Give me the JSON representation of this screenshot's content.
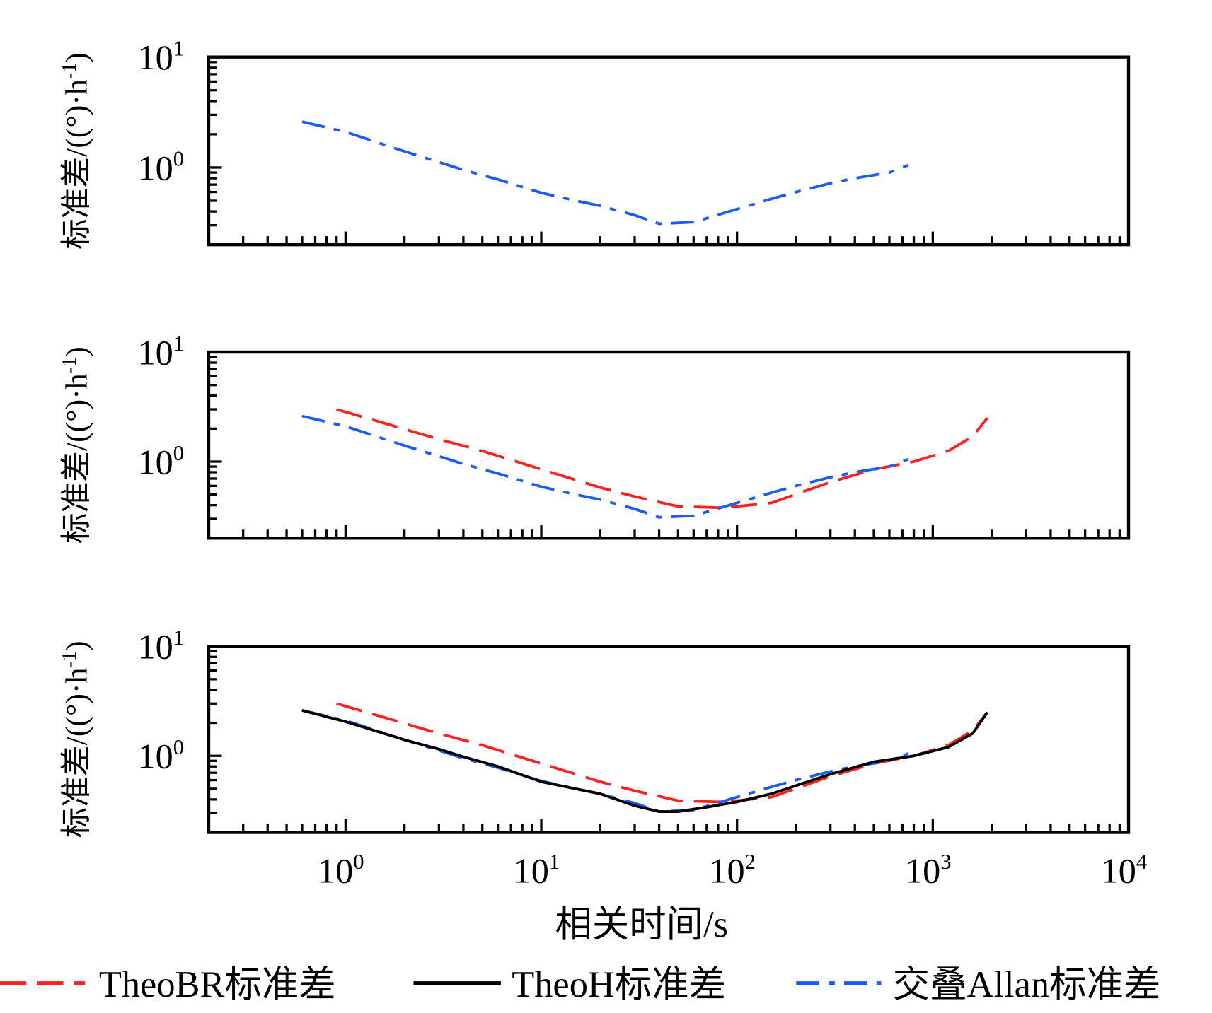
{
  "chart_data": {
    "type": "line",
    "xlabel": "相关时间/s",
    "ylabel": "标准差/((°)·h",
    "ylabel_sup": "-1",
    "ylabel_close": ")",
    "xscale": "log",
    "yscale": "log",
    "xlim": [
      0.2,
      10000
    ],
    "ylim": [
      0.2,
      10
    ],
    "x_ticks": [
      {
        "base": "10",
        "exp": "0",
        "value": 1
      },
      {
        "base": "10",
        "exp": "1",
        "value": 10
      },
      {
        "base": "10",
        "exp": "2",
        "value": 100
      },
      {
        "base": "10",
        "exp": "3",
        "value": 1000
      },
      {
        "base": "10",
        "exp": "4",
        "value": 10000
      }
    ],
    "y_ticks": [
      {
        "base": "10",
        "exp": "1",
        "value": 10
      },
      {
        "base": "10",
        "exp": "0",
        "value": 1
      }
    ],
    "legend_position": "bottom",
    "series_defs": {
      "theobr": {
        "name": "TheoBR标准差",
        "color": "#ff2020",
        "dash": "34,14",
        "x": [
          0.9,
          1.5,
          3,
          5,
          10,
          20,
          30,
          50,
          80,
          100,
          150,
          300,
          500,
          800,
          1200,
          1600,
          1900
        ],
        "y": [
          3.0,
          2.3,
          1.6,
          1.25,
          0.85,
          0.58,
          0.48,
          0.39,
          0.38,
          0.39,
          0.42,
          0.65,
          0.85,
          1.0,
          1.25,
          1.7,
          2.5
        ]
      },
      "theoh": {
        "name": "TheoH标准差",
        "color": "#000000",
        "dash": "",
        "x": [
          0.6,
          1,
          2,
          3,
          4,
          6,
          10,
          15,
          20,
          30,
          40,
          50,
          70,
          100,
          150,
          300,
          500,
          800,
          1200,
          1600,
          1900
        ],
        "y": [
          2.6,
          2.05,
          1.4,
          1.15,
          0.98,
          0.8,
          0.58,
          0.5,
          0.45,
          0.35,
          0.31,
          0.31,
          0.34,
          0.38,
          0.45,
          0.68,
          0.88,
          1.0,
          1.2,
          1.6,
          2.5
        ]
      },
      "allan": {
        "name": "交叠Allan标准差",
        "color": "#1a5cff",
        "dash": "30,12,8,12",
        "x": [
          0.6,
          1,
          2,
          3,
          4,
          6,
          10,
          15,
          20,
          30,
          40,
          60,
          100,
          150,
          200,
          300,
          400,
          600,
          750
        ],
        "y": [
          2.6,
          2.1,
          1.4,
          1.12,
          0.95,
          0.78,
          0.59,
          0.5,
          0.45,
          0.37,
          0.31,
          0.32,
          0.42,
          0.52,
          0.6,
          0.72,
          0.8,
          0.9,
          1.05
        ]
      }
    },
    "panels": [
      {
        "series": [
          "allan"
        ]
      },
      {
        "series": [
          "theobr",
          "allan"
        ]
      },
      {
        "series": [
          "theobr",
          "allan",
          "theoh"
        ]
      }
    ],
    "legend": [
      "theobr",
      "theoh",
      "allan"
    ]
  }
}
